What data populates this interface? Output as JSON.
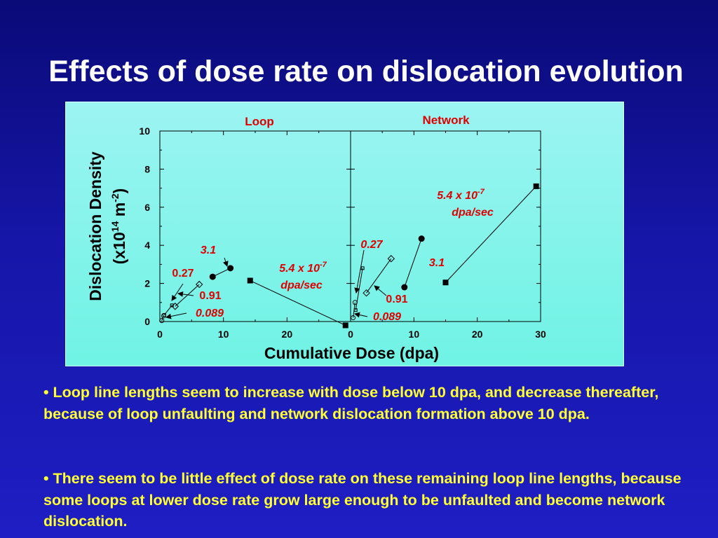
{
  "slide": {
    "title": "Effects of dose rate on dislocation evolution",
    "bullets": [
      "• Loop line lengths seem to increase with dose below 10 dpa, and decrease thereafter, because of loop unfaulting and network dislocation formation above 10 dpa.",
      "• There seem to be little effect of dose rate on these remaining loop line lengths, because some loops at lower dose rate grow large enough to be unfaulted and become network dislocation."
    ]
  },
  "colors": {
    "background": "#1414a0",
    "title": "#ffffff",
    "bullet_text": "#ffff33",
    "panel": "#7ff4e8",
    "annotation_red": "#e00000",
    "axis": "#000000"
  },
  "chart_data": {
    "type": "scatter",
    "ylabel_line1": "Dislocation Density",
    "ylabel_line2_parts": [
      "(x10",
      "14",
      " m",
      "-2",
      ")"
    ],
    "xlabel": "Cumulative Dose (dpa)",
    "ylim": [
      0,
      10
    ],
    "yticks": [
      "0",
      "2",
      "4",
      "6",
      "8",
      "10"
    ],
    "grid": false,
    "panels": [
      {
        "title": "Loop",
        "xlim": [
          0,
          30
        ],
        "xticks": [
          "0",
          "10",
          "20"
        ],
        "series": [
          {
            "name": "0.089",
            "marker": "circle-open",
            "points": [
              [
                0.3,
                0.05
              ],
              [
                0.6,
                0.3
              ]
            ]
          },
          {
            "name": "0.27",
            "marker": "square-open",
            "points": [
              [
                0.7,
                0.35
              ],
              [
                1.9,
                0.85
              ]
            ]
          },
          {
            "name": "0.91",
            "marker": "diamond-open",
            "points": [
              [
                2.4,
                0.8
              ],
              [
                6.2,
                1.95
              ]
            ]
          },
          {
            "name": "3.1",
            "marker": "circle-filled",
            "points": [
              [
                8.3,
                2.35
              ],
              [
                11.1,
                2.8
              ]
            ]
          },
          {
            "name": "5.4 x 10-7 dpa/sec",
            "marker": "square-filled",
            "points": [
              [
                14.2,
                2.15
              ],
              [
                29.2,
                -0.2
              ]
            ]
          }
        ],
        "annotations": [
          {
            "text": "3.1",
            "italic": true
          },
          {
            "text": "0.27",
            "italic": false
          },
          {
            "text": "0.91",
            "italic": false
          },
          {
            "text": "0.089",
            "italic": true
          },
          {
            "text_parts": [
              "5.4 x 10",
              "-7"
            ],
            "line2": "dpa/sec",
            "italic": true
          }
        ]
      },
      {
        "title": "Network",
        "xlim": [
          0,
          30
        ],
        "xticks": [
          "0",
          "10",
          "20",
          "30"
        ],
        "series": [
          {
            "name": "0.089",
            "marker": "circle-open",
            "points": [
              [
                0.4,
                0.2
              ],
              [
                0.7,
                1.0
              ]
            ]
          },
          {
            "name": "0.27",
            "marker": "square-open",
            "points": [
              [
                0.8,
                0.6
              ],
              [
                1.9,
                2.8
              ]
            ]
          },
          {
            "name": "0.91",
            "marker": "diamond-open",
            "points": [
              [
                2.5,
                1.5
              ],
              [
                6.4,
                3.3
              ]
            ]
          },
          {
            "name": "3.1",
            "marker": "circle-filled",
            "points": [
              [
                8.5,
                1.8
              ],
              [
                11.2,
                4.35
              ]
            ]
          },
          {
            "name": "5.4 x 10-7 dpa/sec",
            "marker": "square-filled",
            "points": [
              [
                15.0,
                2.05
              ],
              [
                29.3,
                7.1
              ]
            ]
          }
        ],
        "annotations": [
          {
            "text": "0.27",
            "italic": true
          },
          {
            "text": "3.1",
            "italic": true
          },
          {
            "text": "0.91",
            "italic": false
          },
          {
            "text": "0.089",
            "italic": true
          },
          {
            "text_parts": [
              "5.4 x 10",
              "-7"
            ],
            "line2": "dpa/sec",
            "italic": true
          }
        ]
      }
    ]
  }
}
